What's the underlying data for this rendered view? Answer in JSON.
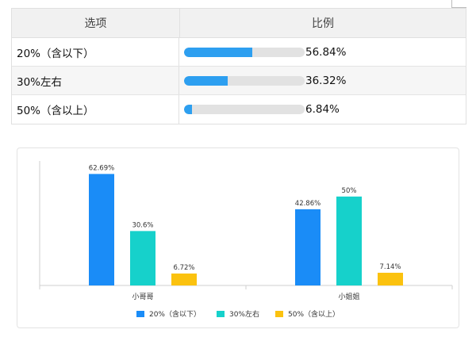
{
  "table": {
    "headers": {
      "option": "选项",
      "ratio": "比例"
    },
    "rows": [
      {
        "label": "20%（含以下）",
        "percent_text": "56.84%",
        "fraction": 0.5684
      },
      {
        "label": "30%左右",
        "percent_text": "36.32%",
        "fraction": 0.3632
      },
      {
        "label": "50%（含以上）",
        "percent_text": "6.84%",
        "fraction": 0.0684
      }
    ],
    "colors": {
      "bar_fill": "#2d9ff0",
      "bar_track": "#e2e2e2"
    }
  },
  "chart_data": {
    "type": "bar",
    "categories": [
      "小哥哥",
      "小姐姐"
    ],
    "series": [
      {
        "name": "20%（含以下）",
        "values": [
          62.69,
          42.86
        ],
        "labels": [
          "62.69%",
          "42.86%"
        ],
        "color": "#1a8cf7"
      },
      {
        "name": "30%左右",
        "values": [
          30.6,
          50
        ],
        "labels": [
          "30.6%",
          "50%"
        ],
        "color": "#16d1cb"
      },
      {
        "name": "50%（含以上）",
        "values": [
          6.72,
          7.14
        ],
        "labels": [
          "6.72%",
          "7.14%"
        ],
        "color": "#fbc20f"
      }
    ],
    "ylim": [
      0,
      70
    ],
    "grid": false,
    "legend_position": "bottom"
  }
}
